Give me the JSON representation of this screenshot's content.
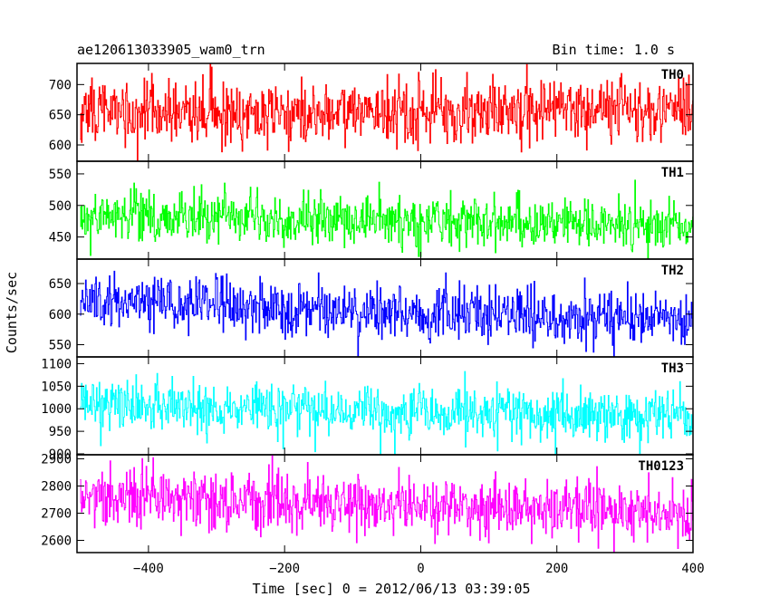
{
  "chart_data": {
    "type": "line",
    "title": "ae120613033905_wam0_trn",
    "bin_time_label": "Bin time: 1.0 s",
    "xlabel": "Time [sec] 0 = 2012/06/13 03:39:05",
    "ylabel": "Counts/sec",
    "xlim": [
      -505,
      400
    ],
    "x_ticks": [
      -400,
      -200,
      0,
      200,
      400
    ],
    "x_tick_labels": [
      "−400",
      "−200",
      "0",
      "200",
      "400"
    ],
    "bin_time_s": 1.0,
    "panels": [
      {
        "name": "TH0",
        "color": "#ff0000",
        "ylim": [
          573,
          735
        ],
        "y_ticks": [
          600,
          650,
          700
        ],
        "x_start": -500,
        "x_end": 400,
        "mean_anchors": [
          [
            -500,
            655
          ],
          [
            0,
            655
          ],
          [
            400,
            655
          ]
        ],
        "noise_sd": 26
      },
      {
        "name": "TH1",
        "color": "#00ff00",
        "ylim": [
          415,
          570
        ],
        "y_ticks": [
          450,
          500,
          550
        ],
        "x_start": -500,
        "x_end": 400,
        "mean_anchors": [
          [
            -500,
            485
          ],
          [
            0,
            475
          ],
          [
            400,
            470
          ]
        ],
        "noise_sd": 20
      },
      {
        "name": "TH2",
        "color": "#0000ff",
        "ylim": [
          530,
          690
        ],
        "y_ticks": [
          550,
          600,
          650
        ],
        "x_start": -500,
        "x_end": 400,
        "mean_anchors": [
          [
            -500,
            625
          ],
          [
            -200,
            610
          ],
          [
            0,
            600
          ],
          [
            400,
            590
          ]
        ],
        "noise_sd": 22
      },
      {
        "name": "TH3",
        "color": "#00ffff",
        "ylim": [
          898,
          1115
        ],
        "y_ticks": [
          900,
          950,
          1000,
          1050,
          1100
        ],
        "x_start": -500,
        "x_end": 400,
        "mean_anchors": [
          [
            -500,
            1010
          ],
          [
            0,
            995
          ],
          [
            400,
            985
          ]
        ],
        "noise_sd": 30
      },
      {
        "name": "TH0123",
        "color": "#ff00ff",
        "ylim": [
          2555,
          2915
        ],
        "y_ticks": [
          2600,
          2700,
          2800,
          2900
        ],
        "x_start": -500,
        "x_end": 400,
        "mean_anchors": [
          [
            -500,
            2770
          ],
          [
            -100,
            2730
          ],
          [
            400,
            2700
          ]
        ],
        "noise_sd": 55
      }
    ]
  }
}
